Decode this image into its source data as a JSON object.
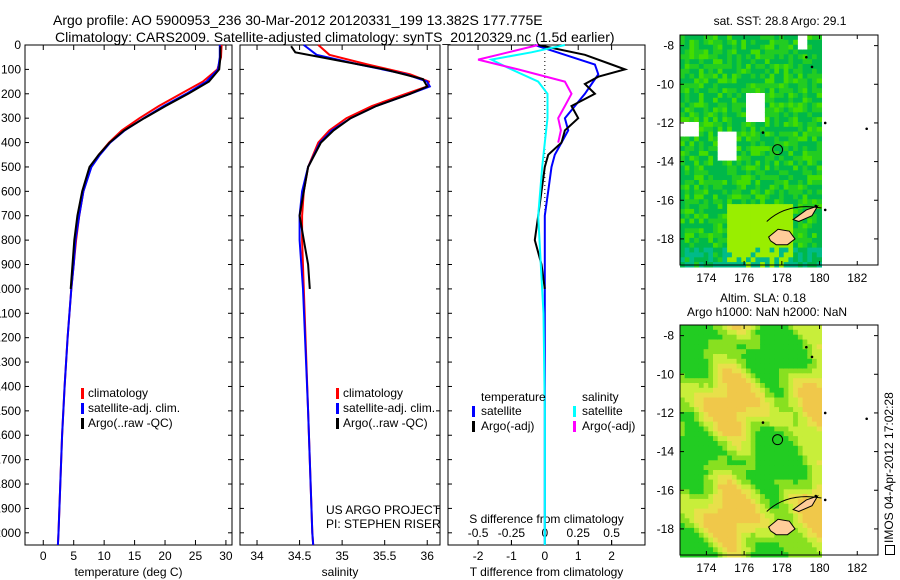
{
  "title": {
    "line1": "Argo profile: AO 5900953_236 30-Mar-2012 20120331_199 13.382S 177.775E",
    "line2": "Climatology: CARS2009. Satellite-adjusted climatology: synTS_20120329.nc (1.5d earlier)"
  },
  "chart_data": [
    {
      "type": "line",
      "xlabel": "temperature (deg C)",
      "ylabel": "",
      "xlim": [
        -3,
        31
      ],
      "ylim": [
        2050,
        0
      ],
      "xticks": [
        "0",
        "5",
        "10",
        "15",
        "20",
        "25",
        "30"
      ],
      "xtick_values": [
        0,
        5,
        10,
        15,
        20,
        25,
        30
      ],
      "yticks": [
        "0",
        "100",
        "200",
        "300",
        "400",
        "500",
        "600",
        "700",
        "800",
        "900",
        "1000",
        "1100",
        "1200",
        "1300",
        "1400",
        "1500",
        "1600",
        "1700",
        "1800",
        "1900",
        "2000"
      ],
      "legend": [
        "climatology",
        "satellite-adj. clim.",
        "Argo(..raw -QC)"
      ],
      "series": [
        {
          "name": "climatology",
          "color": "#ff0000",
          "depth": [
            0,
            50,
            100,
            150,
            200,
            250,
            300,
            350,
            400,
            450,
            500,
            600,
            700,
            800,
            900,
            1000,
            1200,
            1400,
            1600,
            1800,
            2000,
            2050
          ],
          "values": [
            29.3,
            29.2,
            28.6,
            26.2,
            22.6,
            19.0,
            15.8,
            12.9,
            10.8,
            9.1,
            7.8,
            6.6,
            5.9,
            5.4,
            5.0,
            4.6,
            4.0,
            3.5,
            3.1,
            2.8,
            2.5,
            2.4
          ]
        },
        {
          "name": "satellite-adj. clim.",
          "color": "#0000ff",
          "depth": [
            0,
            50,
            100,
            150,
            200,
            250,
            300,
            350,
            400,
            450,
            500,
            600,
            700,
            800,
            900,
            1000,
            1200,
            1400,
            1600,
            1800,
            2000,
            2050
          ],
          "values": [
            29.0,
            29.0,
            28.7,
            26.8,
            23.5,
            19.8,
            16.5,
            13.4,
            11.0,
            9.3,
            7.9,
            6.6,
            5.9,
            5.3,
            5.0,
            4.6,
            4.0,
            3.5,
            3.1,
            2.8,
            2.5,
            2.4
          ]
        },
        {
          "name": "Argo(..raw -QC)",
          "color": "#000000",
          "depth": [
            5,
            50,
            100,
            150,
            200,
            250,
            300,
            350,
            400,
            450,
            500,
            600,
            700,
            800,
            900,
            1000
          ],
          "values": [
            29.1,
            29.1,
            28.9,
            27.2,
            23.8,
            20.1,
            16.6,
            13.3,
            10.9,
            9.1,
            7.6,
            6.4,
            5.6,
            5.1,
            4.8,
            4.5
          ]
        }
      ]
    },
    {
      "type": "line",
      "xlabel": "salinity",
      "xlim": [
        33.8,
        36.15
      ],
      "ylim": [
        2050,
        0
      ],
      "xticks": [
        "34",
        "34.5",
        "35",
        "35.5",
        "36"
      ],
      "xtick_values": [
        34,
        34.5,
        35,
        35.5,
        36
      ],
      "legend": [
        "climatology",
        "satellite-adj. clim.",
        "Argo(..raw -QC)"
      ],
      "annotation": [
        "US ARGO PROJECT",
        "PI: STEPHEN RISER"
      ],
      "series": [
        {
          "name": "climatology",
          "color": "#ff0000",
          "depth": [
            0,
            40,
            80,
            120,
            150,
            170,
            200,
            250,
            300,
            350,
            400,
            500,
            600,
            700,
            800,
            1000,
            1500,
            2000,
            2050
          ],
          "values": [
            34.72,
            34.85,
            35.3,
            35.8,
            36.02,
            36.0,
            35.75,
            35.35,
            35.05,
            34.85,
            34.72,
            34.6,
            34.55,
            34.53,
            34.53,
            34.55,
            34.6,
            34.65,
            34.66
          ]
        },
        {
          "name": "satellite-adj. clim.",
          "color": "#0000ff",
          "depth": [
            0,
            40,
            80,
            120,
            150,
            170,
            200,
            250,
            300,
            350,
            400,
            500,
            600,
            700,
            800,
            1000,
            1500,
            2000,
            2050
          ],
          "values": [
            34.55,
            34.7,
            35.2,
            35.75,
            36.0,
            36.03,
            35.8,
            35.4,
            35.1,
            34.88,
            34.74,
            34.6,
            34.53,
            34.5,
            34.5,
            34.54,
            34.6,
            34.65,
            34.66
          ]
        },
        {
          "name": "Argo(..raw -QC)",
          "color": "#000000",
          "depth": [
            5,
            30,
            60,
            100,
            140,
            170,
            200,
            250,
            300,
            350,
            400,
            500,
            600,
            700,
            800,
            900,
            1000
          ],
          "values": [
            34.4,
            34.45,
            34.9,
            35.5,
            35.95,
            36.0,
            35.8,
            35.4,
            35.1,
            34.9,
            34.75,
            34.6,
            34.55,
            34.5,
            34.55,
            34.6,
            34.62
          ]
        }
      ]
    },
    {
      "type": "line",
      "xlabel": "T difference from climatology",
      "xlabel2": "S difference from climatology",
      "xlim": [
        -2.9,
        3.0
      ],
      "xticks": [
        "-2",
        "-1",
        "0",
        "1",
        "2"
      ],
      "xtick_values": [
        -2,
        -1,
        0,
        1,
        2
      ],
      "xticks_s": [
        "-0.5",
        "-0.25",
        "0",
        "0.25",
        "0.5"
      ],
      "xtick_values_s": [
        -0.5,
        -0.25,
        0,
        0.25,
        0.5
      ],
      "ylim": [
        2050,
        0
      ],
      "legend": {
        "temperature_header": "temperature",
        "salinity_header": "salinity",
        "items": [
          "satellite",
          "Argo(-adj)",
          "satellite",
          "Argo(-adj)"
        ]
      },
      "series": [
        {
          "name": "temperature satellite",
          "units": "T",
          "color": "#0000ff",
          "depth": [
            0,
            40,
            80,
            120,
            160,
            200,
            250,
            300,
            350,
            400,
            450,
            500,
            600,
            700,
            800,
            900,
            1000,
            1500,
            2000,
            2050
          ],
          "values": [
            -0.3,
            0.6,
            1.5,
            1.6,
            1.4,
            1.2,
            0.9,
            0.6,
            0.7,
            0.5,
            0.3,
            0.2,
            0.1,
            0.0,
            0.0,
            0.0,
            0.0,
            0.0,
            0.0,
            0.0
          ]
        },
        {
          "name": "temperature Argo(-adj)",
          "units": "T",
          "color": "#000000",
          "depth": [
            0,
            40,
            80,
            100,
            130,
            160,
            200,
            250,
            300,
            350,
            400,
            450,
            500,
            600,
            700,
            800,
            900,
            1000
          ],
          "values": [
            -0.2,
            1.2,
            2.0,
            2.4,
            1.6,
            1.2,
            1.5,
            0.8,
            1.0,
            0.6,
            0.5,
            0.1,
            0.0,
            -0.1,
            -0.2,
            -0.3,
            -0.1,
            0.0
          ]
        },
        {
          "name": "salinity satellite",
          "units": "S",
          "color": "#00ffff",
          "depth": [
            0,
            30,
            60,
            100,
            150,
            200,
            300,
            400,
            500,
            700,
            900,
            1100,
            1500,
            2000,
            2050
          ],
          "values": [
            0.15,
            -0.1,
            -0.4,
            -0.25,
            -0.05,
            0.02,
            0.02,
            0.0,
            -0.02,
            -0.05,
            -0.03,
            -0.01,
            0.0,
            0.0,
            0.0
          ]
        },
        {
          "name": "salinity Argo(-adj)",
          "units": "S",
          "color": "#ff00ff",
          "depth": [
            0,
            40,
            60,
            100,
            150,
            200,
            250,
            300,
            350,
            400
          ],
          "values": [
            -0.05,
            -0.35,
            -0.5,
            -0.2,
            0.15,
            0.2,
            0.15,
            0.1,
            0.12,
            0.1
          ]
        }
      ]
    },
    {
      "type": "heatmap",
      "title": "sat. SST: 28.8 Argo: 29.1",
      "xticks": [
        "174",
        "176",
        "178",
        "180",
        "182"
      ],
      "xtick_values": [
        174,
        176,
        178,
        180,
        182
      ],
      "yticks": [
        "-8",
        "-10",
        "-12",
        "-14",
        "-16",
        "-18"
      ],
      "ytick_values": [
        -8,
        -10,
        -12,
        -14,
        -16,
        -18
      ],
      "xlim": [
        172.6,
        183.1
      ],
      "ylim": [
        -19.35,
        -7.45
      ],
      "data_lon_max": 180.1,
      "float_position": [
        177.775,
        -13.382
      ]
    },
    {
      "type": "heatmap",
      "title": "Altim. SLA: 0.18",
      "subtitle": "Argo h1000: NaN h2000: NaN",
      "xticks": [
        "174",
        "176",
        "178",
        "180",
        "182"
      ],
      "xtick_values": [
        174,
        176,
        178,
        180,
        182
      ],
      "yticks": [
        "-8",
        "-10",
        "-12",
        "-14",
        "-16",
        "-18"
      ],
      "ytick_values": [
        -8,
        -10,
        -12,
        -14,
        -16,
        -18
      ],
      "xlim": [
        172.6,
        183.1
      ],
      "ylim": [
        -19.35,
        -7.45
      ],
      "data_lon_max": 180.1,
      "float_position": [
        177.775,
        -13.382
      ]
    }
  ],
  "footer": {
    "stamp": "IMOS 04-Apr-2012 17:02:28"
  }
}
